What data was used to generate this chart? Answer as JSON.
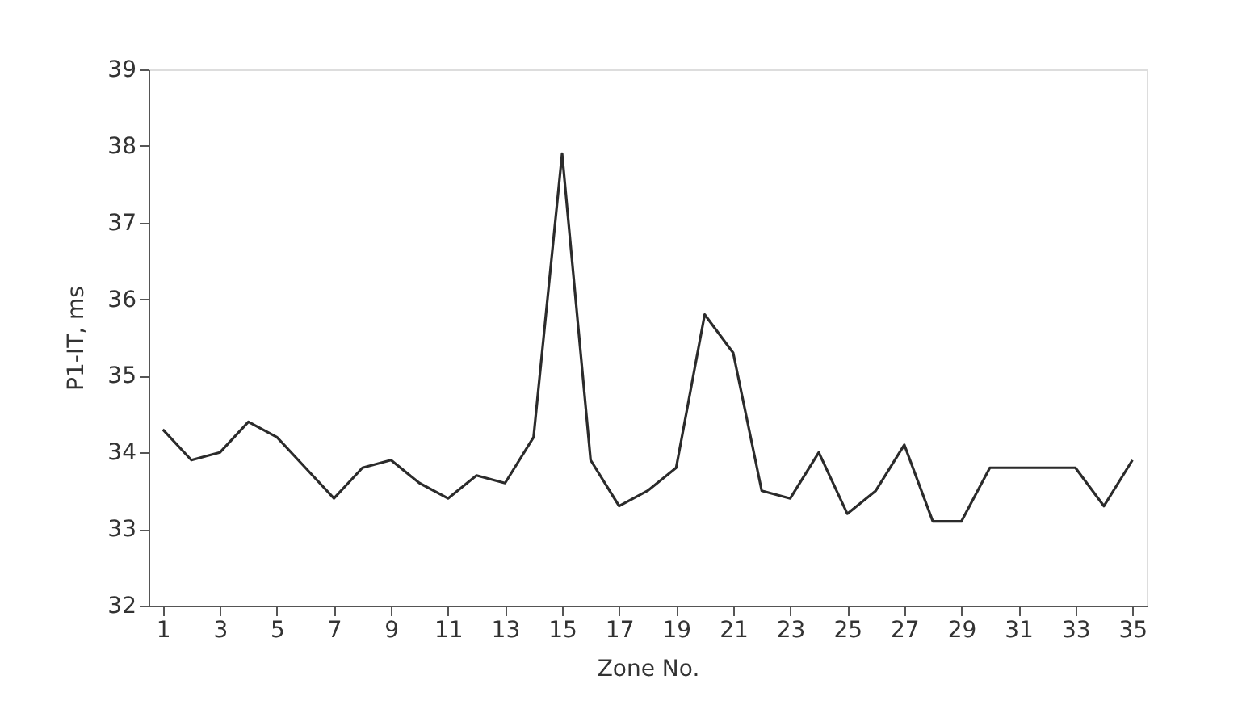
{
  "chart_data": {
    "type": "line",
    "xlabel": "Zone No.",
    "ylabel": "P1-IT, ms",
    "x": [
      1,
      2,
      3,
      4,
      5,
      6,
      7,
      8,
      9,
      10,
      11,
      12,
      13,
      14,
      15,
      16,
      17,
      18,
      19,
      20,
      21,
      22,
      23,
      24,
      25,
      26,
      27,
      28,
      29,
      30,
      31,
      32,
      33,
      34,
      35
    ],
    "series": [
      {
        "color": "#2b2b2b",
        "values": [
          34.3,
          33.9,
          34.0,
          34.4,
          34.2,
          33.8,
          33.4,
          33.8,
          33.9,
          33.6,
          33.4,
          33.7,
          33.6,
          34.2,
          37.9,
          33.9,
          33.3,
          33.5,
          33.8,
          35.8,
          35.3,
          33.5,
          33.4,
          34.0,
          33.2,
          33.5,
          34.1,
          33.1,
          33.1,
          33.8,
          33.8,
          33.8,
          33.8,
          33.3,
          33.9
        ]
      }
    ],
    "xlim": [
      0.5,
      35.5
    ],
    "xticks": [
      1,
      3,
      5,
      7,
      9,
      11,
      13,
      15,
      17,
      19,
      21,
      23,
      25,
      27,
      29,
      31,
      33,
      35
    ],
    "ylim": [
      32,
      39
    ],
    "yticks": [
      32,
      33,
      34,
      35,
      36,
      37,
      38,
      39
    ],
    "grid": false,
    "legend": false,
    "marker": "none",
    "line_style": "solid"
  }
}
